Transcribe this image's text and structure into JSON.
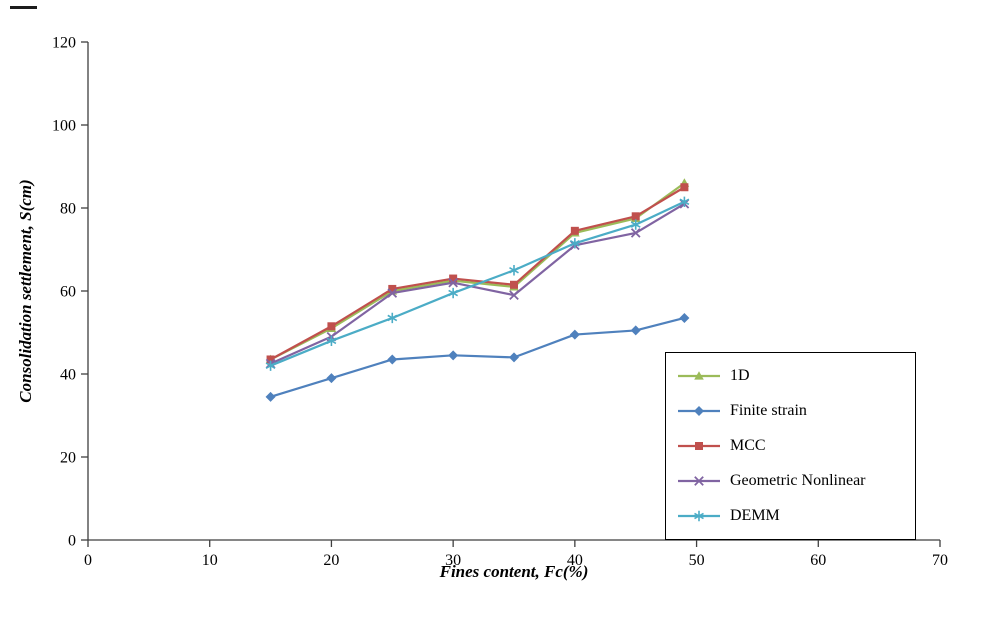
{
  "chart_data": {
    "type": "line",
    "title": "",
    "xlabel": "Fines content, Fc(%)",
    "ylabel": "Consolidation settlement, S(cm)",
    "xlim": [
      0,
      70
    ],
    "ylim": [
      0,
      120
    ],
    "xticks": [
      0,
      10,
      20,
      30,
      40,
      50,
      60,
      70
    ],
    "yticks": [
      0,
      20,
      40,
      60,
      80,
      100,
      120
    ],
    "grid": false,
    "legend_position": "inside-bottom-right",
    "x": [
      15,
      20,
      25,
      30,
      35,
      40,
      45,
      49
    ],
    "series": [
      {
        "name": "1D",
        "color": "#9BBB59",
        "marker": "triangle",
        "values": [
          43.5,
          51,
          60,
          62.5,
          61,
          74,
          77.5,
          86
        ]
      },
      {
        "name": "Finite strain",
        "color": "#4F81BD",
        "marker": "diamond",
        "values": [
          34.5,
          39,
          43.5,
          44.5,
          44,
          49.5,
          50.5,
          53.5
        ]
      },
      {
        "name": "MCC",
        "color": "#C0504D",
        "marker": "square",
        "values": [
          43.5,
          51.5,
          60.5,
          63,
          61.5,
          74.5,
          78,
          85
        ]
      },
      {
        "name": "Geometric Nonlinear",
        "color": "#8064A2",
        "marker": "x",
        "values": [
          42.5,
          49,
          59.5,
          62,
          59,
          71,
          74,
          81
        ]
      },
      {
        "name": "DEMM",
        "color": "#4BACC6",
        "marker": "asterisk",
        "values": [
          42,
          48,
          53.5,
          59.5,
          65,
          71.5,
          76,
          81.5
        ]
      }
    ],
    "axis_color": "#3f3f3f"
  }
}
